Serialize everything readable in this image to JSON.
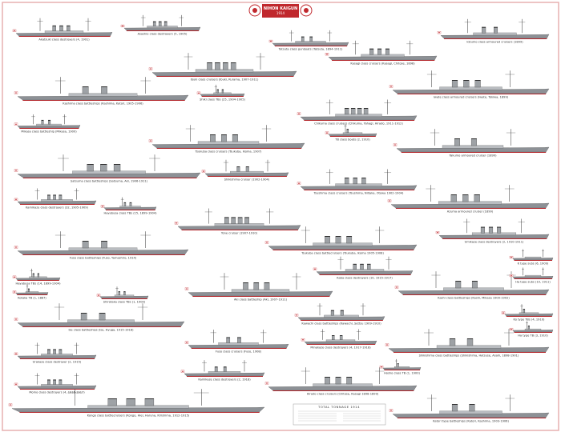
{
  "header": {
    "title": "NIHON KAIGUN",
    "subtitle": "1914"
  },
  "ships": [
    "Akatsuki class destroyers (4, 1901)",
    "Asashio class destroyers (5, 1905)",
    "Tatsuta class gunboats (Tatsuta, 1894-1911)",
    "Ibuki class cruisers (Ibuki, Kurama, 1907-1911)",
    "Kasagi class cruisers (Kasagi, Chitose, 1898)",
    "Idzumo class armoured cruisers (1899)",
    "Kashima class battleships (Kashima, Katori, 1905-1906)",
    "Shiki class TBs (25, 1904-1905)",
    "Chikuma class cruisers (Chikuma, Yahagi, Hirado, 1911-1912)",
    "Iwate class armoured cruisers (Iwate, Tokiwa, 1899)",
    "Mikasa class battleship (Mikasa, 1900)",
    "Tsukuba class cruisers (Tsukuba, Ikoma, 1907)",
    "TB class boats (2, 1910)",
    "Yakumo armoured cruiser (1899)",
    "Satsuma class battleships (Satsuma, Aki, 1906-1911)",
    "Shikishima cruiser (1902-1904)",
    "Tsushima class cruisers (Tsushima, Niitaka, Otowa 1902-1904)",
    "Azuma armoured cruiser (1899)",
    "Kamikaze class destroyers (32, 1905-1909)",
    "Hayabusa class TBs (15, 1899-1904)",
    "Tone cruiser (1907-1910)",
    "Fuso class battleships (Fuso, Yamashiro, 1914)",
    "Tsukuba class battlecruisers (Tsukuba, Ikoma 1905-1908)",
    "Umikaze class destroyers (2, 1910-1911)",
    "Kaba class destroyers (10, 1915-1917)",
    "Aki class battleship (Aki, 1907-1911)",
    "Kashi class battleships (Kashi, Mikasa 1900-1902)",
    "Ise class battleships (Ise, Hyuga, 1915-1918)",
    "Kawachi class battleships (Kawachi, Settsu 1909-1910)",
    "Minekaze class destroyers (4, 1917-1918)",
    "Shikishima class battleships (Shikishima, Hatsuse, Asahi, 1898-1901)",
    "Fuso class cruisers (Fuso, 1908)",
    "Urakaze class destroyer (2, 1915)",
    "Kamikaze class destroyers (2, 1918)",
    "Momo class destroyers (4, 1916-1917)",
    "Kongo class battlecruisers (Kongo, Hiei, Haruna, Kirishima, 1912-1915)",
    "Hirado class cruisers (Chitose, Kasagi 1898-1899)",
    "Hosho class TB (1, 1900)",
    "Katori type battleships (Katori, Kashima, 1903-1906)",
    "K type subs (6, 1909)",
    "Ha type subs (10, 1911)",
    "Ko type TBs (4, 1910)",
    "Ha type TB (3, 1910)",
    "Hayabusa TBs (14, 1899-1904)",
    "Kotaka TB (1, 1887)",
    "Shirotaka class TBs (1, 1900)"
  ],
  "table": {
    "title": "TOTAL TONNAGE 1914"
  }
}
